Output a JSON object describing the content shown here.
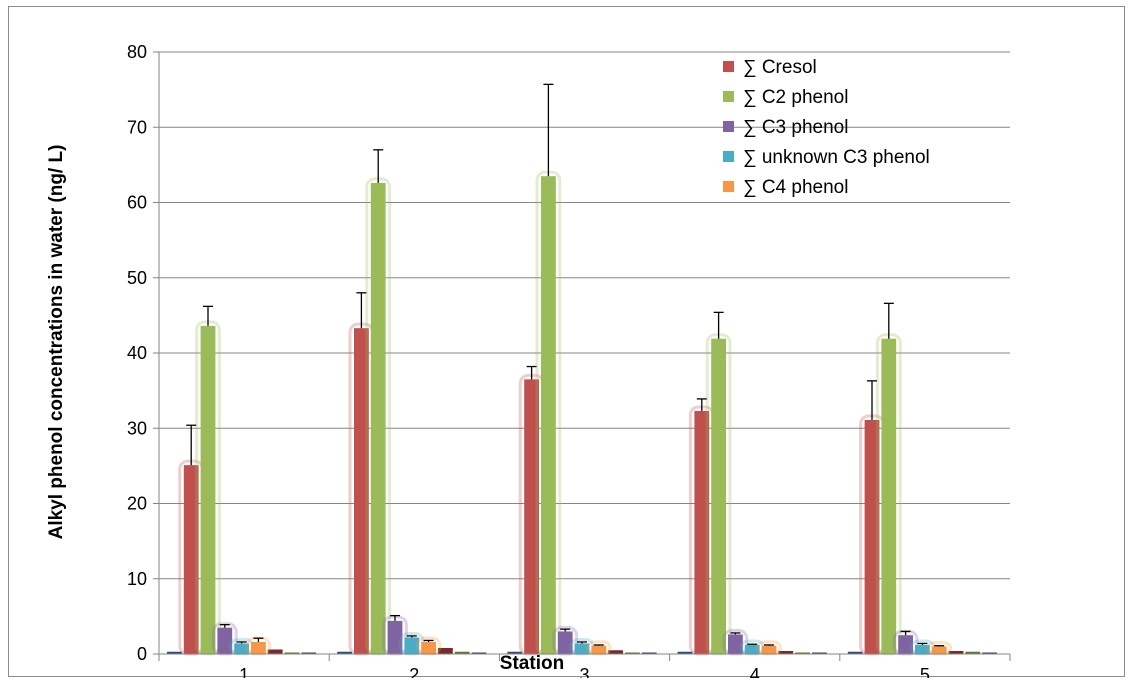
{
  "chart_data": {
    "type": "bar",
    "title": "",
    "xlabel": "Station",
    "ylabel": "Alkyl phenol concentrations in water (ng/ L)",
    "ylim": [
      0,
      80
    ],
    "yticks": [
      "0",
      "10",
      "20",
      "30",
      "40",
      "50",
      "60",
      "70",
      "80"
    ],
    "categories": [
      "1",
      "2",
      "3",
      "4",
      "5"
    ],
    "grid": "horizontal",
    "legend_position": "top-right",
    "bar_slots_per_category": 9,
    "series": [
      {
        "name": "∑ Cresol",
        "color": "#c0504d",
        "slot": 1,
        "values": [
          25.1,
          43.3,
          36.5,
          32.3,
          31.1
        ],
        "errors": [
          5.3,
          4.7,
          1.7,
          1.6,
          5.2
        ]
      },
      {
        "name": "∑ C2 phenol",
        "color": "#9bbb59",
        "slot": 2,
        "values": [
          43.6,
          62.6,
          63.5,
          41.9,
          41.9
        ],
        "errors": [
          2.6,
          4.4,
          12.2,
          3.5,
          4.7
        ]
      },
      {
        "name": "∑ C3 phenol",
        "color": "#8064a2",
        "slot": 3,
        "values": [
          3.5,
          4.4,
          3.0,
          2.6,
          2.5
        ],
        "errors": [
          0.4,
          0.7,
          0.3,
          0.2,
          0.5
        ]
      },
      {
        "name": "∑ unknown C3 phenol",
        "color": "#4bacc6",
        "slot": 4,
        "values": [
          1.4,
          2.2,
          1.4,
          1.2,
          1.2
        ],
        "errors": [
          0.2,
          0.2,
          0.2,
          0.1,
          0.2
        ]
      },
      {
        "name": "∑ C4 phenol",
        "color": "#f79646",
        "slot": 5,
        "values": [
          1.6,
          1.6,
          1.1,
          1.1,
          1.0
        ],
        "errors": [
          0.5,
          0.2,
          0.1,
          0.1,
          0.1
        ]
      }
    ],
    "minor_series": [
      {
        "color": "#2c4d75",
        "slot": 0,
        "values": [
          0.3,
          0.3,
          0.3,
          0.3,
          0.3
        ]
      },
      {
        "color": "#772c2a",
        "slot": 6,
        "values": [
          0.6,
          0.8,
          0.5,
          0.4,
          0.4
        ]
      },
      {
        "color": "#5f7530",
        "slot": 7,
        "values": [
          0.2,
          0.3,
          0.1,
          0.1,
          0.3
        ]
      },
      {
        "color": "#4d3b62",
        "slot": 8,
        "values": [
          0.2,
          0.2,
          0.2,
          0.2,
          0.2
        ]
      }
    ]
  }
}
